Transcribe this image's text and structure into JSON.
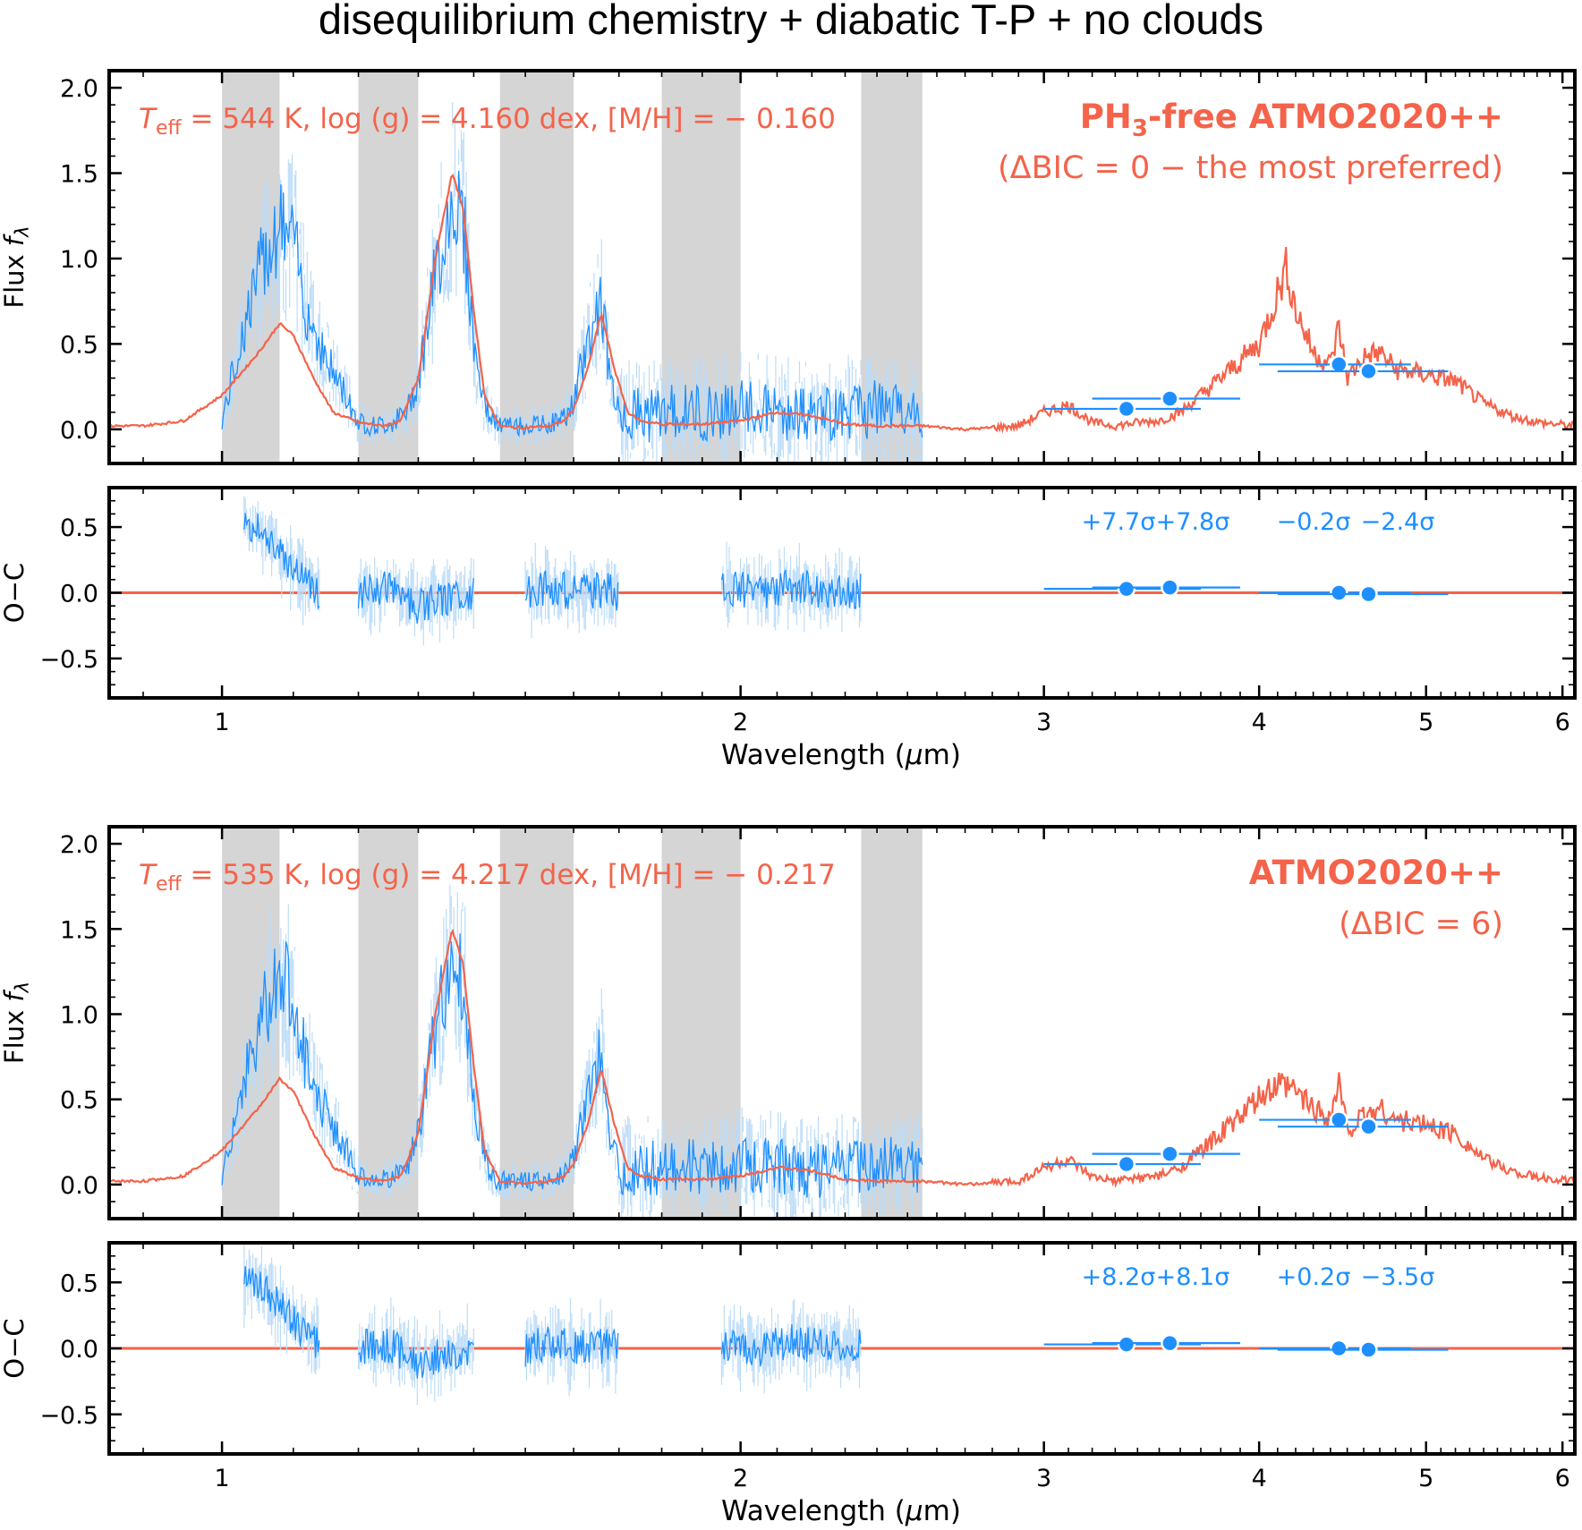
{
  "title": "disequilibrium chemistry + diabatic T-P + no clouds",
  "colors": {
    "model": "#f4634a",
    "data": "#1e8fff",
    "data_err": "#bcdcf8",
    "shade": "#d5d5d5",
    "axis": "#000000"
  },
  "chart_data": [
    {
      "type": "line",
      "panel": "spectrum",
      "model_label": "PH3-free ATMO2020++",
      "model_label_main": "PH",
      "model_label_sub": "3",
      "model_label_rest": "-free ATMO2020++",
      "delta_bic_text": "(ΔBIC = 0 − the most preferred)",
      "params": {
        "teff_sym": "T",
        "teff_sub": "eff",
        "text": " = 544 K, log (g) = 4.160 dex, [M/H] = − 0.160"
      },
      "ylabel": "Flux fλ",
      "xscale": "log",
      "xlim": [
        0.86,
        6.1
      ],
      "ylim": [
        -0.2,
        2.1
      ],
      "yticks": [
        "0.0",
        "0.5",
        "1.0",
        "1.5",
        "2.0"
      ],
      "shaded_regions_um": [
        [
          1.0,
          1.08
        ],
        [
          1.2,
          1.3
        ],
        [
          1.45,
          1.6
        ],
        [
          1.8,
          2.0
        ],
        [
          2.35,
          2.55
        ]
      ],
      "model_curve": {
        "x": [
          0.86,
          0.9,
          0.95,
          1.0,
          1.05,
          1.08,
          1.1,
          1.13,
          1.16,
          1.2,
          1.24,
          1.27,
          1.3,
          1.33,
          1.36,
          1.38,
          1.4,
          1.42,
          1.45,
          1.48,
          1.5,
          1.55,
          1.58,
          1.6,
          1.63,
          1.66,
          1.69,
          1.72,
          1.75,
          1.8,
          1.9,
          2.0,
          2.1,
          2.2,
          2.3,
          2.4,
          2.55,
          2.7,
          2.9,
          3.0,
          3.1,
          3.2,
          3.3,
          3.4,
          3.5,
          3.6,
          3.7,
          3.8,
          3.9,
          4.0,
          4.1,
          4.15,
          4.2,
          4.3,
          4.4,
          4.45,
          4.5,
          4.6,
          4.7,
          4.8,
          5.0,
          5.2,
          5.4,
          5.6,
          5.8,
          6.1
        ],
        "y": [
          0.02,
          0.02,
          0.05,
          0.2,
          0.45,
          0.62,
          0.55,
          0.3,
          0.1,
          0.04,
          0.02,
          0.05,
          0.3,
          1.0,
          1.5,
          1.3,
          0.7,
          0.2,
          0.02,
          0.01,
          0.01,
          0.02,
          0.05,
          0.12,
          0.35,
          0.68,
          0.35,
          0.1,
          0.05,
          0.03,
          0.03,
          0.05,
          0.1,
          0.08,
          0.03,
          0.02,
          0.02,
          0.0,
          0.02,
          0.1,
          0.14,
          0.04,
          0.02,
          0.04,
          0.05,
          0.1,
          0.2,
          0.3,
          0.4,
          0.5,
          0.8,
          0.95,
          0.7,
          0.45,
          0.38,
          0.6,
          0.3,
          0.42,
          0.45,
          0.35,
          0.32,
          0.28,
          0.15,
          0.08,
          0.04,
          0.02
        ]
      },
      "data_curve": {
        "x": [
          1.0,
          1.03,
          1.06,
          1.08,
          1.1,
          1.12,
          1.15,
          1.18,
          1.2,
          1.22,
          1.25,
          1.28,
          1.3,
          1.33,
          1.36,
          1.38,
          1.4,
          1.42,
          1.44,
          1.46,
          1.5,
          1.55,
          1.58,
          1.6,
          1.62,
          1.64,
          1.66,
          1.68,
          1.7,
          1.75,
          1.8,
          1.9,
          2.0,
          2.1,
          2.2,
          2.3,
          2.4,
          2.5,
          2.55
        ],
        "y": [
          0.05,
          0.6,
          1.05,
          1.2,
          1.1,
          0.7,
          0.4,
          0.2,
          0.05,
          0.02,
          0.03,
          0.1,
          0.3,
          0.9,
          1.35,
          1.25,
          0.5,
          0.15,
          0.03,
          0.02,
          0.02,
          0.03,
          0.07,
          0.15,
          0.4,
          0.6,
          0.78,
          0.3,
          0.1,
          0.08,
          0.1,
          0.1,
          0.12,
          0.1,
          0.08,
          0.1,
          0.12,
          0.1,
          0.08
        ]
      },
      "photometry": [
        {
          "x": 3.35,
          "y": 0.12,
          "xerr": [
            3.0,
            3.7
          ]
        },
        {
          "x": 3.55,
          "y": 0.18,
          "xerr": [
            3.2,
            3.9
          ]
        },
        {
          "x": 4.45,
          "y": 0.38,
          "xerr": [
            4.0,
            4.9
          ]
        },
        {
          "x": 4.63,
          "y": 0.34,
          "xerr": [
            4.1,
            5.15
          ]
        }
      ]
    },
    {
      "type": "line",
      "panel": "residual",
      "ylabel": "O−C",
      "xlabel": "Wavelength (μm)",
      "xscale": "log",
      "xlim": [
        0.86,
        6.1
      ],
      "ylim": [
        -0.8,
        0.8
      ],
      "yticks": [
        "−0.5",
        "0.0",
        "0.5"
      ],
      "xticks": [
        "1",
        "2",
        "3",
        "4",
        "5",
        "6"
      ],
      "xtick_values": [
        1,
        2,
        3,
        4,
        5,
        6
      ],
      "residual_segments": [
        {
          "x": [
            1.03,
            1.06,
            1.1,
            1.14
          ],
          "y": [
            0.5,
            0.45,
            0.2,
            0.0
          ]
        },
        {
          "x": [
            1.2,
            1.25,
            1.3,
            1.35,
            1.4
          ],
          "y": [
            0.0,
            0.03,
            -0.1,
            -0.05,
            0.0
          ]
        },
        {
          "x": [
            1.5,
            1.55,
            1.6,
            1.65,
            1.7
          ],
          "y": [
            0.0,
            0.05,
            0.0,
            0.02,
            0.0
          ]
        },
        {
          "x": [
            1.95,
            2.05,
            2.15,
            2.25,
            2.35
          ],
          "y": [
            0.05,
            0.0,
            0.05,
            0.0,
            0.02
          ]
        }
      ],
      "photometry": [
        {
          "x": 3.35,
          "y": 0.03,
          "xerr": [
            3.0,
            3.7
          ],
          "label": "+7.7σ"
        },
        {
          "x": 3.55,
          "y": 0.04,
          "xerr": [
            3.2,
            3.9
          ],
          "label": "+7.8σ"
        },
        {
          "x": 4.45,
          "y": 0.0,
          "xerr": [
            4.0,
            4.9
          ],
          "label": "−0.2σ"
        },
        {
          "x": 4.63,
          "y": -0.01,
          "xerr": [
            4.1,
            5.15
          ],
          "label": "−2.4σ"
        }
      ]
    },
    {
      "type": "line",
      "panel": "spectrum",
      "model_label": "ATMO2020++",
      "model_label_main": "ATMO2020++",
      "model_label_sub": "",
      "model_label_rest": "",
      "delta_bic_text": "(ΔBIC = 6)",
      "params": {
        "teff_sym": "T",
        "teff_sub": "eff",
        "text": " = 535 K, log (g) = 4.217 dex, [M/H] = − 0.217"
      },
      "ylabel": "Flux fλ",
      "xscale": "log",
      "xlim": [
        0.86,
        6.1
      ],
      "ylim": [
        -0.2,
        2.1
      ],
      "yticks": [
        "0.0",
        "0.5",
        "1.0",
        "1.5",
        "2.0"
      ],
      "shaded_regions_um": [
        [
          1.0,
          1.08
        ],
        [
          1.2,
          1.3
        ],
        [
          1.45,
          1.6
        ],
        [
          1.8,
          2.0
        ],
        [
          2.35,
          2.55
        ]
      ],
      "model_curve": {
        "x": [
          0.86,
          0.9,
          0.95,
          1.0,
          1.05,
          1.08,
          1.1,
          1.13,
          1.16,
          1.2,
          1.24,
          1.27,
          1.3,
          1.33,
          1.36,
          1.38,
          1.4,
          1.42,
          1.45,
          1.48,
          1.5,
          1.55,
          1.58,
          1.6,
          1.63,
          1.66,
          1.69,
          1.72,
          1.75,
          1.8,
          1.9,
          2.0,
          2.1,
          2.2,
          2.3,
          2.4,
          2.55,
          2.7,
          2.9,
          3.0,
          3.1,
          3.2,
          3.3,
          3.4,
          3.5,
          3.6,
          3.7,
          3.8,
          3.9,
          4.0,
          4.1,
          4.2,
          4.3,
          4.4,
          4.45,
          4.5,
          4.6,
          4.7,
          4.8,
          5.0,
          5.2,
          5.4,
          5.6,
          5.8,
          6.1
        ],
        "y": [
          0.02,
          0.02,
          0.05,
          0.2,
          0.45,
          0.62,
          0.55,
          0.3,
          0.1,
          0.04,
          0.02,
          0.05,
          0.3,
          1.0,
          1.5,
          1.3,
          0.7,
          0.2,
          0.02,
          0.01,
          0.01,
          0.02,
          0.05,
          0.12,
          0.35,
          0.68,
          0.35,
          0.1,
          0.05,
          0.03,
          0.03,
          0.05,
          0.1,
          0.08,
          0.03,
          0.02,
          0.02,
          0.0,
          0.02,
          0.1,
          0.14,
          0.04,
          0.02,
          0.04,
          0.05,
          0.1,
          0.2,
          0.3,
          0.4,
          0.5,
          0.58,
          0.55,
          0.45,
          0.4,
          0.6,
          0.32,
          0.4,
          0.45,
          0.38,
          0.35,
          0.3,
          0.15,
          0.08,
          0.04,
          0.02
        ]
      },
      "data_curve": {
        "x": [
          1.0,
          1.03,
          1.06,
          1.08,
          1.1,
          1.12,
          1.15,
          1.18,
          1.2,
          1.22,
          1.25,
          1.28,
          1.3,
          1.33,
          1.36,
          1.38,
          1.4,
          1.42,
          1.44,
          1.46,
          1.5,
          1.55,
          1.58,
          1.6,
          1.62,
          1.64,
          1.66,
          1.68,
          1.7,
          1.75,
          1.8,
          1.9,
          2.0,
          2.1,
          2.2,
          2.3,
          2.4,
          2.5,
          2.55
        ],
        "y": [
          0.05,
          0.6,
          1.05,
          1.2,
          1.1,
          0.7,
          0.4,
          0.2,
          0.05,
          0.02,
          0.03,
          0.1,
          0.3,
          0.9,
          1.35,
          1.25,
          0.5,
          0.15,
          0.03,
          0.02,
          0.02,
          0.03,
          0.07,
          0.15,
          0.4,
          0.6,
          0.78,
          0.3,
          0.1,
          0.08,
          0.1,
          0.1,
          0.12,
          0.1,
          0.08,
          0.1,
          0.12,
          0.1,
          0.08
        ]
      },
      "photometry": [
        {
          "x": 3.35,
          "y": 0.12,
          "xerr": [
            3.0,
            3.7
          ]
        },
        {
          "x": 3.55,
          "y": 0.18,
          "xerr": [
            3.2,
            3.9
          ]
        },
        {
          "x": 4.45,
          "y": 0.38,
          "xerr": [
            4.0,
            4.9
          ]
        },
        {
          "x": 4.63,
          "y": 0.34,
          "xerr": [
            4.1,
            5.15
          ]
        }
      ]
    },
    {
      "type": "line",
      "panel": "residual",
      "ylabel": "O−C",
      "xlabel": "Wavelength (μm)",
      "xscale": "log",
      "xlim": [
        0.86,
        6.1
      ],
      "ylim": [
        -0.8,
        0.8
      ],
      "yticks": [
        "−0.5",
        "0.0",
        "0.5"
      ],
      "xticks": [
        "1",
        "2",
        "3",
        "4",
        "5",
        "6"
      ],
      "xtick_values": [
        1,
        2,
        3,
        4,
        5,
        6
      ],
      "residual_segments": [
        {
          "x": [
            1.03,
            1.06,
            1.1,
            1.14
          ],
          "y": [
            0.5,
            0.45,
            0.2,
            0.0
          ]
        },
        {
          "x": [
            1.2,
            1.25,
            1.3,
            1.35,
            1.4
          ],
          "y": [
            0.0,
            0.03,
            -0.1,
            -0.05,
            0.0
          ]
        },
        {
          "x": [
            1.5,
            1.55,
            1.6,
            1.65,
            1.7
          ],
          "y": [
            0.0,
            0.05,
            0.0,
            0.02,
            0.0
          ]
        },
        {
          "x": [
            1.95,
            2.05,
            2.15,
            2.25,
            2.35
          ],
          "y": [
            0.05,
            0.0,
            0.05,
            0.0,
            0.02
          ]
        }
      ],
      "photometry": [
        {
          "x": 3.35,
          "y": 0.03,
          "xerr": [
            3.0,
            3.7
          ],
          "label": "+8.2σ"
        },
        {
          "x": 3.55,
          "y": 0.04,
          "xerr": [
            3.2,
            3.9
          ],
          "label": "+8.1σ"
        },
        {
          "x": 4.45,
          "y": 0.0,
          "xerr": [
            4.0,
            4.9
          ],
          "label": "+0.2σ"
        },
        {
          "x": 4.63,
          "y": -0.01,
          "xerr": [
            4.1,
            5.15
          ],
          "label": "−3.5σ"
        }
      ]
    }
  ]
}
